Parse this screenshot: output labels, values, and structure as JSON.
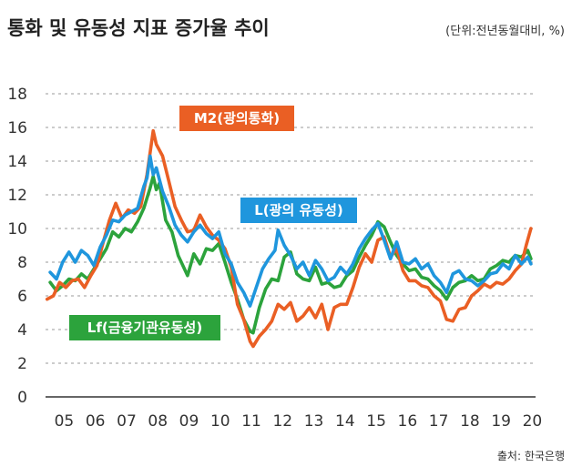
{
  "chart_data": {
    "type": "line",
    "title": "통화 및 유동성 지표 증가율 추이",
    "unit": "(단위:전년동월대비, %)",
    "source": "출처: 한국은행",
    "ylim": [
      0,
      18
    ],
    "yticks": [
      "0",
      "2",
      "4",
      "6",
      "8",
      "10",
      "12",
      "14",
      "16",
      "18"
    ],
    "xlim": [
      2004.55,
      2020.25
    ],
    "xticks": [
      {
        "label": "05",
        "value": 2005
      },
      {
        "label": "06",
        "value": 2006
      },
      {
        "label": "07",
        "value": 2007
      },
      {
        "label": "08",
        "value": 2008
      },
      {
        "label": "09",
        "value": 2009
      },
      {
        "label": "10",
        "value": 2010
      },
      {
        "label": "11",
        "value": 2011
      },
      {
        "label": "12",
        "value": 2012
      },
      {
        "label": "13",
        "value": 2013
      },
      {
        "label": "14",
        "value": 2014
      },
      {
        "label": "15",
        "value": 2015
      },
      {
        "label": "16",
        "value": 2016
      },
      {
        "label": "17",
        "value": 2017
      },
      {
        "label": "18",
        "value": 2018
      },
      {
        "label": "19",
        "value": 2019
      },
      {
        "label": "20",
        "value": 2020
      }
    ],
    "grid": true,
    "series": [
      {
        "name": "Lf(금융기관유동성)",
        "color": "#2ca33c",
        "points": [
          [
            2004.7,
            6.8
          ],
          [
            2004.9,
            6.3
          ],
          [
            2005.1,
            6.6
          ],
          [
            2005.3,
            7.0
          ],
          [
            2005.5,
            6.9
          ],
          [
            2005.7,
            7.3
          ],
          [
            2005.9,
            7.0
          ],
          [
            2006.1,
            7.6
          ],
          [
            2006.3,
            8.2
          ],
          [
            2006.5,
            8.8
          ],
          [
            2006.7,
            9.8
          ],
          [
            2006.9,
            9.5
          ],
          [
            2007.1,
            10.0
          ],
          [
            2007.3,
            9.8
          ],
          [
            2007.5,
            10.4
          ],
          [
            2007.7,
            11.2
          ],
          [
            2007.9,
            12.4
          ],
          [
            2008.0,
            13.1
          ],
          [
            2008.1,
            12.3
          ],
          [
            2008.2,
            12.7
          ],
          [
            2008.4,
            10.5
          ],
          [
            2008.6,
            9.8
          ],
          [
            2008.8,
            8.4
          ],
          [
            2009.0,
            7.6
          ],
          [
            2009.1,
            7.2
          ],
          [
            2009.3,
            8.5
          ],
          [
            2009.5,
            7.9
          ],
          [
            2009.7,
            8.8
          ],
          [
            2009.9,
            8.7
          ],
          [
            2010.1,
            9.1
          ],
          [
            2010.3,
            8.0
          ],
          [
            2010.5,
            6.8
          ],
          [
            2010.7,
            5.8
          ],
          [
            2010.9,
            4.6
          ],
          [
            2011.1,
            3.9
          ],
          [
            2011.2,
            3.8
          ],
          [
            2011.4,
            5.3
          ],
          [
            2011.6,
            6.4
          ],
          [
            2011.8,
            7.0
          ],
          [
            2012.0,
            6.9
          ],
          [
            2012.2,
            8.3
          ],
          [
            2012.4,
            8.6
          ],
          [
            2012.6,
            7.3
          ],
          [
            2012.8,
            7.0
          ],
          [
            2013.0,
            6.9
          ],
          [
            2013.2,
            7.7
          ],
          [
            2013.4,
            6.7
          ],
          [
            2013.6,
            6.8
          ],
          [
            2013.8,
            6.5
          ],
          [
            2014.0,
            6.6
          ],
          [
            2014.2,
            7.2
          ],
          [
            2014.4,
            7.5
          ],
          [
            2014.6,
            8.3
          ],
          [
            2014.8,
            9.0
          ],
          [
            2015.0,
            9.6
          ],
          [
            2015.2,
            10.4
          ],
          [
            2015.4,
            10.1
          ],
          [
            2015.6,
            9.2
          ],
          [
            2015.8,
            8.4
          ],
          [
            2016.0,
            7.9
          ],
          [
            2016.2,
            7.5
          ],
          [
            2016.4,
            7.6
          ],
          [
            2016.6,
            7.1
          ],
          [
            2016.8,
            7.0
          ],
          [
            2017.0,
            6.6
          ],
          [
            2017.2,
            6.3
          ],
          [
            2017.4,
            5.8
          ],
          [
            2017.6,
            6.5
          ],
          [
            2017.8,
            6.8
          ],
          [
            2018.0,
            6.9
          ],
          [
            2018.2,
            7.2
          ],
          [
            2018.4,
            6.9
          ],
          [
            2018.6,
            7.0
          ],
          [
            2018.8,
            7.6
          ],
          [
            2019.0,
            7.8
          ],
          [
            2019.2,
            8.1
          ],
          [
            2019.4,
            8.0
          ],
          [
            2019.6,
            8.4
          ],
          [
            2019.8,
            8.3
          ],
          [
            2020.0,
            8.7
          ],
          [
            2020.1,
            8.2
          ]
        ]
      },
      {
        "name": "M2(광의통화)",
        "color": "#ea5f24",
        "points": [
          [
            2004.6,
            5.8
          ],
          [
            2004.8,
            6.0
          ],
          [
            2005.0,
            6.8
          ],
          [
            2005.2,
            6.5
          ],
          [
            2005.4,
            6.9
          ],
          [
            2005.6,
            7.0
          ],
          [
            2005.8,
            6.5
          ],
          [
            2006.0,
            7.2
          ],
          [
            2006.2,
            7.8
          ],
          [
            2006.4,
            9.2
          ],
          [
            2006.6,
            10.5
          ],
          [
            2006.8,
            11.5
          ],
          [
            2007.0,
            10.6
          ],
          [
            2007.2,
            11.1
          ],
          [
            2007.4,
            10.9
          ],
          [
            2007.6,
            11.3
          ],
          [
            2007.8,
            13.2
          ],
          [
            2007.9,
            14.5
          ],
          [
            2008.0,
            15.8
          ],
          [
            2008.1,
            15.0
          ],
          [
            2008.3,
            14.3
          ],
          [
            2008.5,
            12.8
          ],
          [
            2008.7,
            11.3
          ],
          [
            2008.9,
            10.5
          ],
          [
            2009.1,
            9.8
          ],
          [
            2009.3,
            9.9
          ],
          [
            2009.5,
            10.8
          ],
          [
            2009.7,
            10.1
          ],
          [
            2009.9,
            9.6
          ],
          [
            2010.1,
            9.3
          ],
          [
            2010.3,
            8.8
          ],
          [
            2010.5,
            7.7
          ],
          [
            2010.7,
            5.5
          ],
          [
            2010.9,
            4.6
          ],
          [
            2011.1,
            3.3
          ],
          [
            2011.2,
            3.0
          ],
          [
            2011.4,
            3.6
          ],
          [
            2011.6,
            4.0
          ],
          [
            2011.8,
            4.5
          ],
          [
            2012.0,
            5.5
          ],
          [
            2012.2,
            5.2
          ],
          [
            2012.4,
            5.6
          ],
          [
            2012.6,
            4.5
          ],
          [
            2012.8,
            4.8
          ],
          [
            2013.0,
            5.3
          ],
          [
            2013.2,
            4.7
          ],
          [
            2013.4,
            5.5
          ],
          [
            2013.6,
            4.0
          ],
          [
            2013.8,
            5.3
          ],
          [
            2014.0,
            5.5
          ],
          [
            2014.2,
            5.5
          ],
          [
            2014.4,
            6.5
          ],
          [
            2014.6,
            7.7
          ],
          [
            2014.8,
            8.5
          ],
          [
            2015.0,
            8.0
          ],
          [
            2015.2,
            9.3
          ],
          [
            2015.4,
            9.5
          ],
          [
            2015.6,
            8.3
          ],
          [
            2015.8,
            8.8
          ],
          [
            2016.0,
            7.5
          ],
          [
            2016.2,
            6.9
          ],
          [
            2016.4,
            6.9
          ],
          [
            2016.6,
            6.6
          ],
          [
            2016.8,
            6.5
          ],
          [
            2017.0,
            6.0
          ],
          [
            2017.2,
            5.7
          ],
          [
            2017.4,
            4.6
          ],
          [
            2017.6,
            4.5
          ],
          [
            2017.8,
            5.2
          ],
          [
            2018.0,
            5.3
          ],
          [
            2018.2,
            6.0
          ],
          [
            2018.4,
            6.3
          ],
          [
            2018.6,
            6.7
          ],
          [
            2018.8,
            6.5
          ],
          [
            2019.0,
            6.8
          ],
          [
            2019.2,
            6.7
          ],
          [
            2019.4,
            7.0
          ],
          [
            2019.6,
            7.5
          ],
          [
            2019.8,
            7.9
          ],
          [
            2019.95,
            9.0
          ],
          [
            2020.1,
            10.0
          ]
        ]
      },
      {
        "name": "L(광의 유동성)",
        "color": "#1f96dd",
        "points": [
          [
            2004.7,
            7.4
          ],
          [
            2004.9,
            7.0
          ],
          [
            2005.1,
            8.0
          ],
          [
            2005.3,
            8.6
          ],
          [
            2005.5,
            8.0
          ],
          [
            2005.7,
            8.7
          ],
          [
            2005.9,
            8.4
          ],
          [
            2006.1,
            7.8
          ],
          [
            2006.3,
            8.9
          ],
          [
            2006.5,
            9.6
          ],
          [
            2006.7,
            10.5
          ],
          [
            2006.9,
            10.4
          ],
          [
            2007.1,
            10.8
          ],
          [
            2007.3,
            11.0
          ],
          [
            2007.5,
            11.2
          ],
          [
            2007.7,
            12.5
          ],
          [
            2007.8,
            13.0
          ],
          [
            2007.9,
            14.3
          ],
          [
            2008.0,
            13.2
          ],
          [
            2008.1,
            13.6
          ],
          [
            2008.3,
            12.2
          ],
          [
            2008.5,
            11.3
          ],
          [
            2008.7,
            10.2
          ],
          [
            2008.9,
            9.6
          ],
          [
            2009.1,
            9.2
          ],
          [
            2009.3,
            9.8
          ],
          [
            2009.5,
            10.2
          ],
          [
            2009.7,
            9.7
          ],
          [
            2009.9,
            9.4
          ],
          [
            2010.1,
            9.8
          ],
          [
            2010.3,
            8.5
          ],
          [
            2010.5,
            7.9
          ],
          [
            2010.7,
            6.8
          ],
          [
            2010.9,
            6.2
          ],
          [
            2011.1,
            5.4
          ],
          [
            2011.3,
            6.5
          ],
          [
            2011.5,
            7.6
          ],
          [
            2011.7,
            8.2
          ],
          [
            2011.9,
            8.7
          ],
          [
            2012.0,
            9.9
          ],
          [
            2012.2,
            9.0
          ],
          [
            2012.4,
            8.4
          ],
          [
            2012.6,
            7.6
          ],
          [
            2012.8,
            8.0
          ],
          [
            2013.0,
            7.2
          ],
          [
            2013.2,
            8.1
          ],
          [
            2013.4,
            7.6
          ],
          [
            2013.6,
            6.9
          ],
          [
            2013.8,
            7.1
          ],
          [
            2014.0,
            7.7
          ],
          [
            2014.2,
            7.3
          ],
          [
            2014.4,
            7.9
          ],
          [
            2014.6,
            8.8
          ],
          [
            2014.8,
            9.4
          ],
          [
            2015.0,
            9.9
          ],
          [
            2015.2,
            10.3
          ],
          [
            2015.4,
            9.3
          ],
          [
            2015.6,
            8.2
          ],
          [
            2015.8,
            9.2
          ],
          [
            2016.0,
            8.0
          ],
          [
            2016.2,
            7.9
          ],
          [
            2016.4,
            8.2
          ],
          [
            2016.6,
            7.6
          ],
          [
            2016.8,
            7.9
          ],
          [
            2017.0,
            7.2
          ],
          [
            2017.2,
            6.8
          ],
          [
            2017.4,
            6.2
          ],
          [
            2017.6,
            7.3
          ],
          [
            2017.8,
            7.5
          ],
          [
            2018.0,
            7.0
          ],
          [
            2018.2,
            6.9
          ],
          [
            2018.4,
            6.6
          ],
          [
            2018.6,
            6.9
          ],
          [
            2018.8,
            7.3
          ],
          [
            2019.0,
            7.4
          ],
          [
            2019.2,
            7.9
          ],
          [
            2019.4,
            7.6
          ],
          [
            2019.6,
            8.4
          ],
          [
            2019.8,
            7.9
          ],
          [
            2020.0,
            8.3
          ],
          [
            2020.1,
            7.9
          ]
        ]
      }
    ],
    "labels": [
      {
        "text": "M2(광의통화)",
        "color": "#ea5f24"
      },
      {
        "text": "L(광의 유동성)",
        "color": "#1f96dd"
      },
      {
        "text": "Lf(금융기관유동성)",
        "color": "#2ca33c"
      }
    ]
  }
}
